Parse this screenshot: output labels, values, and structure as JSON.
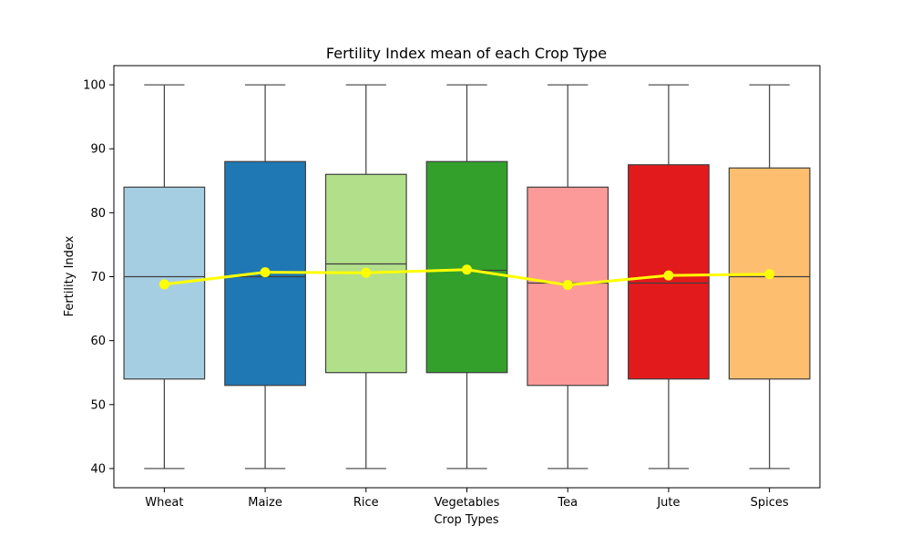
{
  "chart_data": {
    "type": "box",
    "title": "Fertility Index mean of each Crop Type",
    "xlabel": "Crop Types",
    "ylabel": "Fertility Index",
    "ylim": [
      37,
      103
    ],
    "yticks": [
      40,
      50,
      60,
      70,
      80,
      90,
      100
    ],
    "grid": false,
    "categories": [
      "Wheat",
      "Maize",
      "Rice",
      "Vegetables",
      "Tea",
      "Jute",
      "Spices"
    ],
    "boxes": [
      {
        "category": "Wheat",
        "min": 40,
        "q1": 54,
        "median": 70,
        "q3": 84,
        "max": 100,
        "color": "#a6cee3"
      },
      {
        "category": "Maize",
        "min": 40,
        "q1": 53,
        "median": 70,
        "q3": 88,
        "max": 100,
        "color": "#1f78b4"
      },
      {
        "category": "Rice",
        "min": 40,
        "q1": 55,
        "median": 72,
        "q3": 86,
        "max": 100,
        "color": "#b2df8a"
      },
      {
        "category": "Vegetables",
        "min": 40,
        "q1": 55,
        "median": 71,
        "q3": 88,
        "max": 100,
        "color": "#33a02c"
      },
      {
        "category": "Tea",
        "min": 40,
        "q1": 53,
        "median": 69,
        "q3": 84,
        "max": 100,
        "color": "#fb9a99"
      },
      {
        "category": "Jute",
        "min": 40,
        "q1": 54,
        "median": 69,
        "q3": 87.5,
        "max": 100,
        "color": "#e31a1c"
      },
      {
        "category": "Spices",
        "min": 40,
        "q1": 54,
        "median": 70,
        "q3": 87,
        "max": 100,
        "color": "#fdbf6f"
      }
    ],
    "mean_series": {
      "values": [
        68.8,
        70.7,
        70.6,
        71.1,
        68.7,
        70.2,
        70.4
      ],
      "color": "#ffff00"
    }
  }
}
